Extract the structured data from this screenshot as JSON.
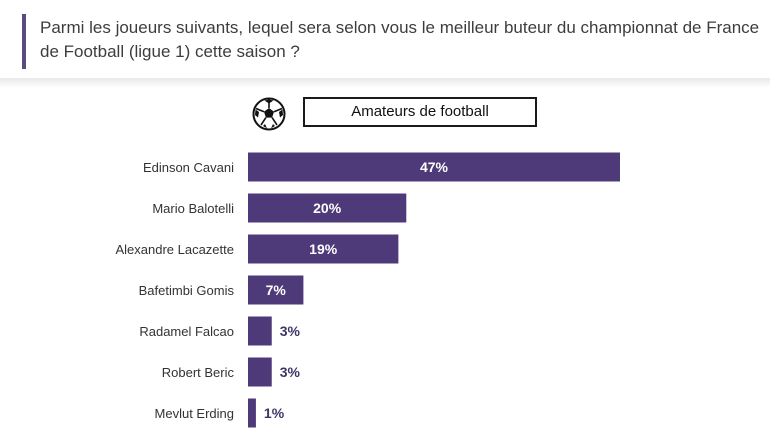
{
  "question": "Parmi les joueurs suivants, lequel sera selon vous le meilleur buteur du championnat de France de Football (ligue 1) cette saison ?",
  "legend": {
    "label": "Amateurs de football",
    "icon": "soccer-ball-icon"
  },
  "colors": {
    "bar": "#4e3a78",
    "accent": "#5a4a7e"
  },
  "chart_data": {
    "type": "bar",
    "orientation": "horizontal",
    "categories": [
      "Edinson Cavani",
      "Mario Balotelli",
      "Alexandre Lacazette",
      "Bafetimbi Gomis",
      "Radamel Falcao",
      "Robert Beric",
      "Mevlut Erding"
    ],
    "series": [
      {
        "name": "Amateurs de football",
        "values": [
          47,
          20,
          19,
          7,
          3,
          3,
          1
        ]
      }
    ],
    "labels": [
      "47%",
      "20%",
      "19%",
      "7%",
      "3%",
      "3%",
      "1%"
    ],
    "xlim": [
      0,
      47
    ],
    "grid": false,
    "legend_position": "top"
  }
}
